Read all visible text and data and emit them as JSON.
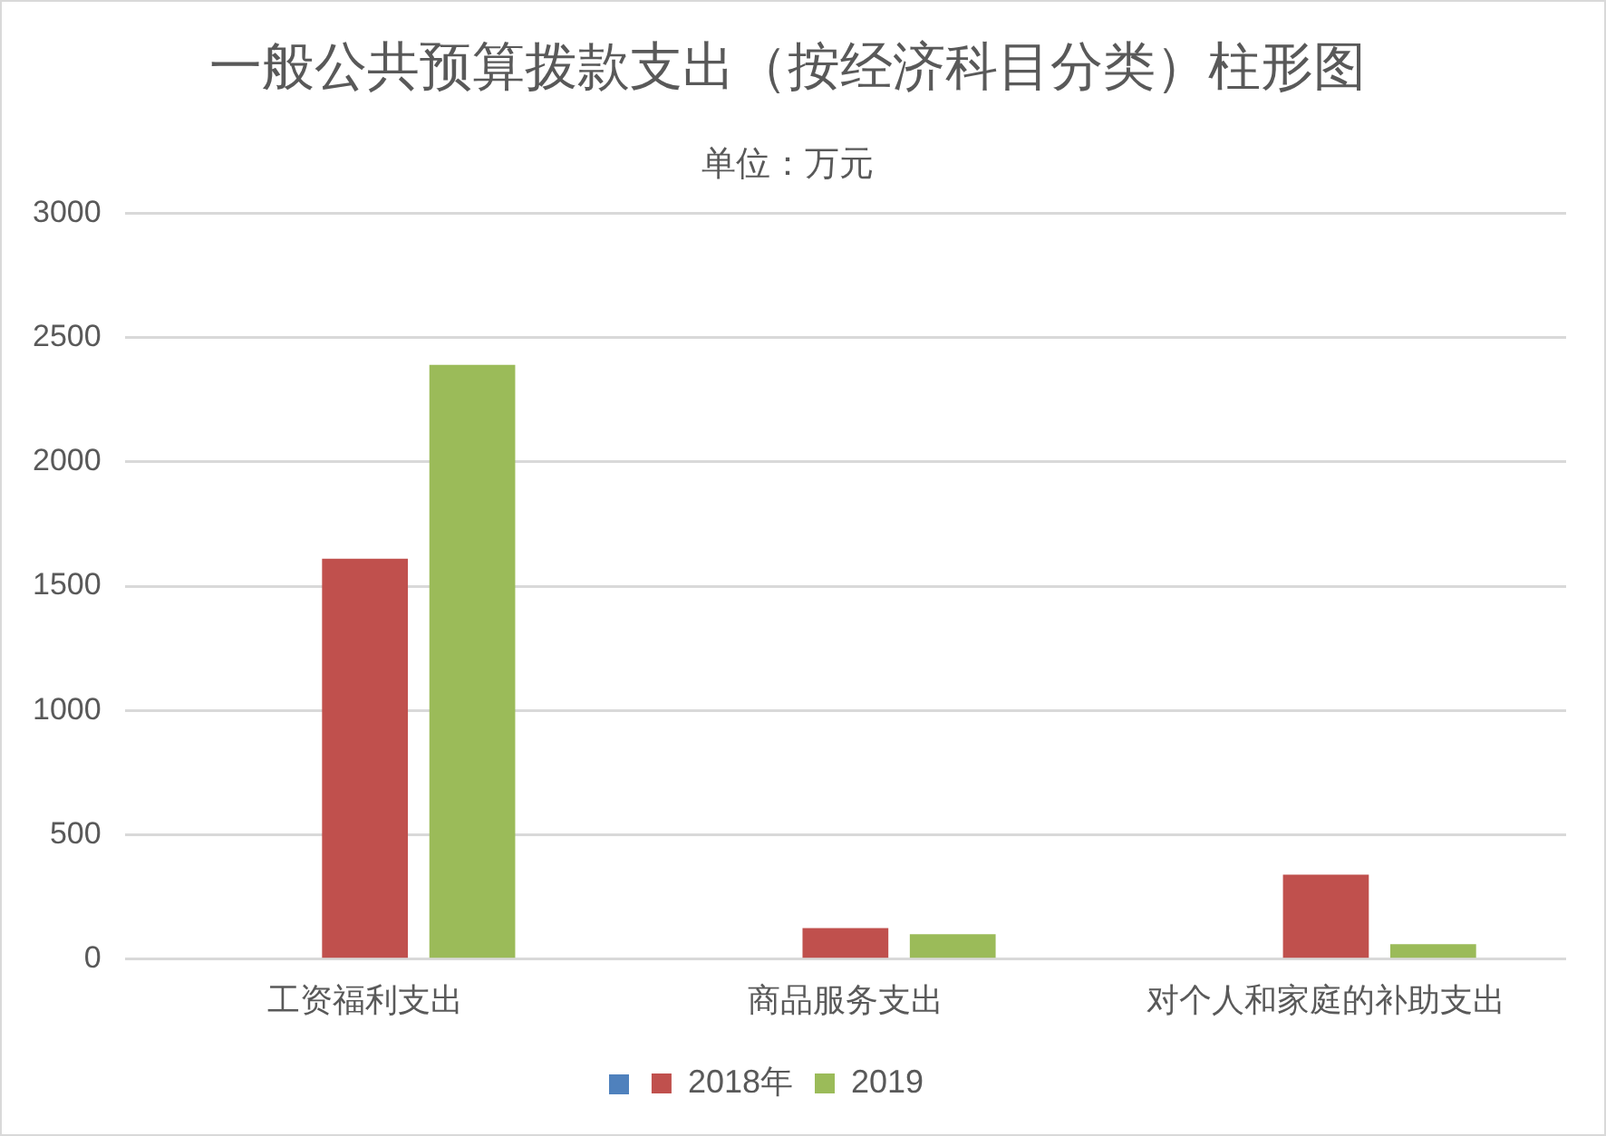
{
  "chart_data": {
    "type": "bar",
    "title": "一般公共预算拨款支出（按经济科目分类）柱形图",
    "subtitle": "单位：万元",
    "categories": [
      "工资福利支出",
      "商品服务支出",
      "对个人和家庭的补助支出"
    ],
    "series": [
      {
        "color": "#4f81bd",
        "values": [
          null,
          null,
          null
        ]
      },
      {
        "name": "2018年",
        "color": "#c0504d",
        "values": [
          1610,
          125,
          340
        ]
      },
      {
        "name": "2019",
        "color": "#9bbb59",
        "values": [
          2390,
          100,
          60
        ]
      }
    ],
    "ylim": [
      0,
      3000
    ],
    "yticks": [
      0,
      500,
      1000,
      1500,
      2000,
      2500,
      3000
    ],
    "grid": "y",
    "legend": "bottom"
  }
}
